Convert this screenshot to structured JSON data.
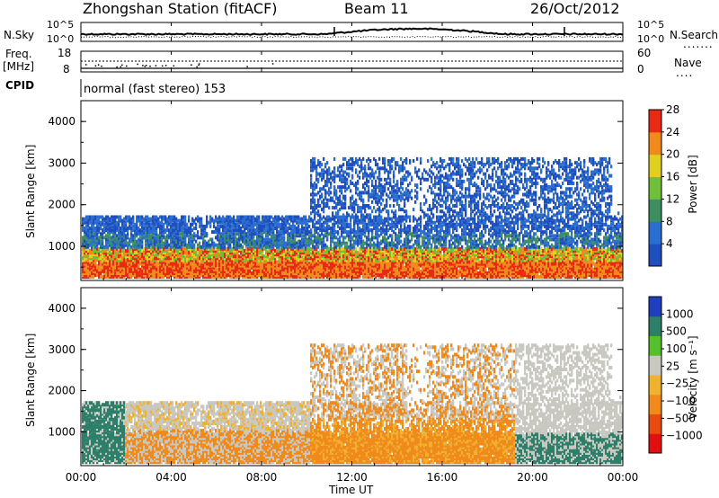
{
  "header": {
    "station": "Zhongshan Station (fitACF)",
    "beam": "Beam 11",
    "date": "26/Oct/2012"
  },
  "noise_panel": {
    "left_label": "N.Sky",
    "left_top": "10^5",
    "left_bottom": "10^0",
    "right_top": "10^5",
    "right_bottom": "10^0",
    "right_label": "N.Search"
  },
  "freq_panel": {
    "left_label_1": "Freq.",
    "left_label_2": "[MHz]",
    "left_top": "18",
    "left_bottom": "8",
    "right_top": "60",
    "right_bottom": "0",
    "right_label": "Nave"
  },
  "cpid": {
    "label": "CPID",
    "text": "normal (fast stereo) 153"
  },
  "chart_data": [
    {
      "type": "heatmap",
      "title": "",
      "quantity": "Power",
      "ylabel": "Slant Range [km]",
      "xlabel": "Time UT",
      "ylim": [
        180,
        4500
      ],
      "yticks": [
        "1000",
        "2000",
        "3000",
        "4000"
      ],
      "colorbar_label": "Power [dB]",
      "colorbar_ticks": [
        "4",
        "8",
        "12",
        "16",
        "20",
        "24",
        "28"
      ],
      "colors": [
        "#1f4fbf",
        "#2a6fd0",
        "#3d8f5f",
        "#6fbf3a",
        "#e0d020",
        "#f08a1a",
        "#e82a14"
      ]
    },
    {
      "type": "heatmap",
      "title": "",
      "quantity": "Velocity",
      "ylabel": "Slant Range [km]",
      "xlabel": "Time UT",
      "ylim": [
        180,
        4500
      ],
      "yticks": [
        "1000",
        "2000",
        "3000",
        "4000"
      ],
      "colorbar_label": "Velocity [m s⁻¹]",
      "colorbar_ticks": [
        "1000",
        "500",
        "100",
        "25",
        "−25",
        "−100",
        "−500",
        "−1000"
      ],
      "colors": [
        "#1f3fbf",
        "#2e7f6a",
        "#55c02a",
        "#c8c8c0",
        "#f0b030",
        "#f08a1a",
        "#e84a10",
        "#e01010"
      ]
    }
  ],
  "x_axis": {
    "label": "Time UT",
    "ticks": [
      "00:00",
      "04:00",
      "08:00",
      "12:00",
      "16:00",
      "20:00",
      "00:00"
    ]
  }
}
